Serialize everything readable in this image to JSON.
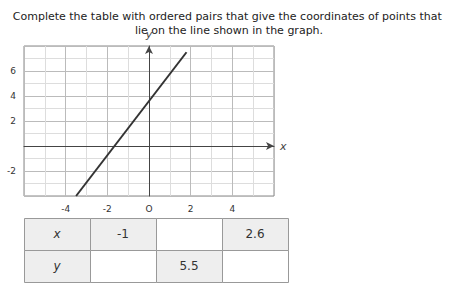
{
  "chart_data": {
    "type": "line",
    "title": "Complete the table with ordered pairs that give the coordinates of points that lie on the line shown in the graph.",
    "x": [
      -3.5,
      1.8
    ],
    "values": [
      -4.0,
      7.5
    ],
    "color": "#333333",
    "xlim": [
      -6,
      6
    ],
    "ylim": [
      -4,
      8
    ],
    "xticks": [
      -4,
      -2,
      {
        "value": 0,
        "label": "O"
      },
      2,
      4
    ],
    "yticks": [
      -2,
      2,
      4,
      6
    ],
    "x_label": "x",
    "y_label": "y",
    "grid": true,
    "table": [
      [
        "x",
        "-1",
        null,
        "2.6"
      ],
      [
        "y",
        null,
        "5.5",
        null
      ]
    ]
  }
}
